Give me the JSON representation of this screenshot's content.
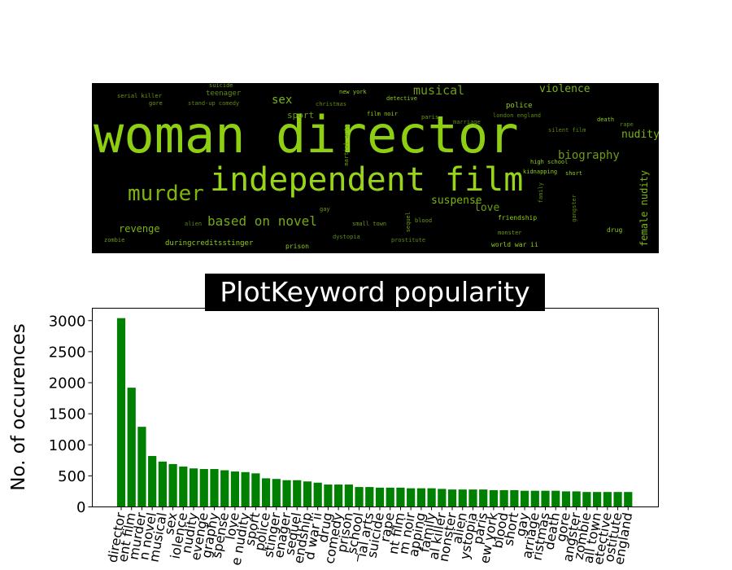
{
  "wordcloud": {
    "words": [
      {
        "text": "woman director",
        "color": "#8fcf12"
      },
      {
        "text": "independent film",
        "color": "#98d418"
      },
      {
        "text": "murder",
        "color": "#7fb40f"
      },
      {
        "text": "based on novel",
        "color": "#77aa12"
      },
      {
        "text": "musical",
        "color": "#6e9e12"
      },
      {
        "text": "violence",
        "color": "#7ab50e"
      },
      {
        "text": "sex",
        "color": "#7ab50e"
      },
      {
        "text": "nudity",
        "color": "#7ab50e"
      },
      {
        "text": "biography",
        "color": "#6e9a13"
      },
      {
        "text": "female nudity",
        "color": "#7ab50e"
      },
      {
        "text": "suspense",
        "color": "#7ab50e"
      },
      {
        "text": "love",
        "color": "#6e9a13"
      },
      {
        "text": "revenge",
        "color": "#7ab50e"
      },
      {
        "text": "sport",
        "color": "#6e9a13"
      },
      {
        "text": "police",
        "color": "#8fcf12"
      },
      {
        "text": "duringcreditsstinger",
        "color": "#8fcf12"
      },
      {
        "text": "friendship",
        "color": "#8fcf12"
      },
      {
        "text": "teenager",
        "color": "#5f8a12"
      },
      {
        "text": "suicide",
        "color": "#6e9a13"
      },
      {
        "text": "serial killer",
        "color": "#6e9a13"
      },
      {
        "text": "gore",
        "color": "#6e9a13"
      },
      {
        "text": "stand-up comedy",
        "color": "#5f8a12"
      },
      {
        "text": "new york",
        "color": "#8fcf12"
      },
      {
        "text": "detective",
        "color": "#8fcf12"
      },
      {
        "text": "christmas",
        "color": "#5f8a12"
      },
      {
        "text": "film noir",
        "color": "#8fcf12"
      },
      {
        "text": "paris",
        "color": "#6e9a13"
      },
      {
        "text": "marriage",
        "color": "#5f8a12"
      },
      {
        "text": "london england",
        "color": "#5f8a12"
      },
      {
        "text": "death",
        "color": "#8fcf12"
      },
      {
        "text": "rape",
        "color": "#5f8a12"
      },
      {
        "text": "silent film",
        "color": "#5f8a12"
      },
      {
        "text": "high school",
        "color": "#8fcf12"
      },
      {
        "text": "kidnapping",
        "color": "#8fcf12"
      },
      {
        "text": "short",
        "color": "#8fcf12"
      },
      {
        "text": "martial arts",
        "color": "#6e9a13"
      },
      {
        "text": "family",
        "color": "#5f8a12"
      },
      {
        "text": "gangster",
        "color": "#5f8a12"
      },
      {
        "text": "sequel",
        "color": "#6e9a13"
      },
      {
        "text": "gay",
        "color": "#6e9a13"
      },
      {
        "text": "alien",
        "color": "#5f8a12"
      },
      {
        "text": "small town",
        "color": "#6e9a13"
      },
      {
        "text": "blood",
        "color": "#6e9a13"
      },
      {
        "text": "zombie",
        "color": "#6e9a13"
      },
      {
        "text": "dystopia",
        "color": "#5f8a12"
      },
      {
        "text": "prostitute",
        "color": "#5f8a12"
      },
      {
        "text": "monster",
        "color": "#6e9a13"
      },
      {
        "text": "drug",
        "color": "#8fcf12"
      },
      {
        "text": "prison",
        "color": "#8fcf12"
      },
      {
        "text": "world war ii",
        "color": "#8fcf12"
      }
    ]
  },
  "chart_data": {
    "type": "bar",
    "title": "PlotKeyword popularity",
    "xlabel": "",
    "ylabel": "No. of occurences",
    "ylim": [
      0,
      3200
    ],
    "yticks": [
      0,
      500,
      1000,
      1500,
      2000,
      2500,
      3000
    ],
    "bar_color": "#008000",
    "tick_label_rotation": 80,
    "categories": [
      "woman director",
      "independent film",
      "murder",
      "based on novel",
      "musical",
      "sex",
      "violence",
      "nudity",
      "revenge",
      "biography",
      "suspense",
      "love",
      "female nudity",
      "sport",
      "police",
      "duringcreditsstinger",
      "teenager",
      "sequel",
      "friendship",
      "world war ii",
      "drug",
      "stand-up comedy",
      "prison",
      "high school",
      "martial arts",
      "suicide",
      "rape",
      "silent film",
      "film noir",
      "kidnapping",
      "family",
      "serial killer",
      "monster",
      "alien",
      "dystopia",
      "paris",
      "new york",
      "blood",
      "short",
      "gay",
      "marriage",
      "christmas",
      "death",
      "gore",
      "gangster",
      "zombie",
      "small town",
      "detective",
      "prostitute",
      "london england"
    ],
    "values": [
      3040,
      1920,
      1290,
      820,
      730,
      690,
      650,
      620,
      610,
      610,
      590,
      570,
      560,
      540,
      460,
      450,
      430,
      430,
      410,
      390,
      360,
      360,
      360,
      320,
      320,
      310,
      310,
      310,
      300,
      300,
      300,
      290,
      280,
      280,
      280,
      280,
      270,
      270,
      270,
      260,
      260,
      260,
      260,
      250,
      250,
      240,
      240,
      240,
      240,
      240
    ],
    "visible_tick_labels": [
      "director",
      "ent film",
      "murder",
      "n novel",
      "musical",
      "sex",
      "iolence",
      "nudity",
      "evenge",
      "graphy",
      "spense",
      "love",
      "e nudity",
      "sport",
      "police",
      "stinger",
      "enager",
      "sequel",
      "endship",
      "d war ii",
      "drug",
      "comedy",
      "prison",
      "_school",
      "ial arts",
      "suicide",
      "rape",
      "nt film",
      "m noir",
      "apping",
      "family",
      "al killer",
      "nonster",
      "alien",
      "ystopia",
      "paris",
      "ew york",
      "blood",
      "short",
      "gay",
      "arriage",
      "ristmas",
      "death",
      "gore",
      "angster",
      "zombie",
      "all town",
      "etective",
      "ostitute",
      "england"
    ],
    "grid": false,
    "legend": false
  }
}
